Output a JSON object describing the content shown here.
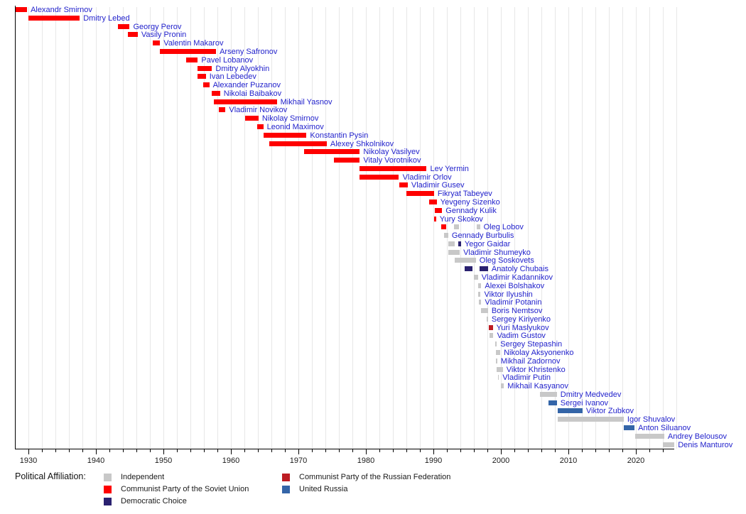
{
  "chart_data": {
    "type": "bar",
    "variant": "horizontal-timeline-gantt",
    "description": "Timeline of officeholders with bars colored by political affiliation",
    "x_axis": {
      "range": [
        1928,
        2025.7
      ],
      "decade_ticks": [
        1930,
        1940,
        1950,
        1960,
        1970,
        1980,
        1990,
        2000,
        2010,
        2020
      ],
      "minor_tick_step": 2,
      "gridline_step": 2,
      "grid": true
    },
    "legend_title": "Political Affiliation:",
    "legend_position": "bottom",
    "parties": {
      "independent": {
        "label": "Independent",
        "color": "#c8c8c8"
      },
      "cpsu": {
        "label": "Communist Party of the Soviet Union",
        "color": "#fe0000"
      },
      "democratic_choice": {
        "label": "Democratic Choice",
        "color": "#2a2170"
      },
      "cprf": {
        "label": "Communist Party of the Russian Federation",
        "color": "#bd1c23"
      },
      "united_russia": {
        "label": "United Russia",
        "color": "#3465a8"
      }
    },
    "legend_columns": [
      [
        "independent",
        "cpsu",
        "democratic_choice"
      ],
      [
        "cprf",
        "united_russia"
      ]
    ],
    "people": [
      {
        "name": "Alexandr Smirnov",
        "segments": [
          {
            "party": "cpsu",
            "start": 1928.0,
            "end": 1929.8
          }
        ]
      },
      {
        "name": "Dmitry Lebed",
        "segments": [
          {
            "party": "cpsu",
            "start": 1930.0,
            "end": 1937.6
          }
        ]
      },
      {
        "name": "Georgy Perov",
        "segments": [
          {
            "party": "cpsu",
            "start": 1943.3,
            "end": 1945.0
          }
        ]
      },
      {
        "name": "Vasily Pronin",
        "segments": [
          {
            "party": "cpsu",
            "start": 1944.7,
            "end": 1946.2
          }
        ]
      },
      {
        "name": "Valentin Makarov",
        "segments": [
          {
            "party": "cpsu",
            "start": 1948.4,
            "end": 1949.5
          }
        ]
      },
      {
        "name": "Arseny Safronov",
        "segments": [
          {
            "party": "cpsu",
            "start": 1949.5,
            "end": 1957.8
          }
        ]
      },
      {
        "name": "Pavel Lobanov",
        "segments": [
          {
            "party": "cpsu",
            "start": 1953.4,
            "end": 1955.1
          }
        ]
      },
      {
        "name": "Dmitry Alyokhin",
        "segments": [
          {
            "party": "cpsu",
            "start": 1955.1,
            "end": 1957.2
          }
        ]
      },
      {
        "name": "Ivan Lebedev",
        "segments": [
          {
            "party": "cpsu",
            "start": 1955.1,
            "end": 1956.3
          }
        ]
      },
      {
        "name": "Alexander Puzanov",
        "segments": [
          {
            "party": "cpsu",
            "start": 1955.9,
            "end": 1956.8
          }
        ]
      },
      {
        "name": "Nikolai Baibakov",
        "segments": [
          {
            "party": "cpsu",
            "start": 1957.2,
            "end": 1958.4
          }
        ]
      },
      {
        "name": "Mikhail Yasnov",
        "segments": [
          {
            "party": "cpsu",
            "start": 1957.5,
            "end": 1966.8
          }
        ]
      },
      {
        "name": "Vladimir Novikov",
        "segments": [
          {
            "party": "cpsu",
            "start": 1958.2,
            "end": 1959.2
          }
        ]
      },
      {
        "name": "Nikolay Smirnov",
        "segments": [
          {
            "party": "cpsu",
            "start": 1962.1,
            "end": 1964.1
          }
        ]
      },
      {
        "name": "Leonid Maximov",
        "segments": [
          {
            "party": "cpsu",
            "start": 1963.9,
            "end": 1964.8
          }
        ]
      },
      {
        "name": "Konstantin Pysin",
        "segments": [
          {
            "party": "cpsu",
            "start": 1964.8,
            "end": 1971.2
          }
        ]
      },
      {
        "name": "Alexey Shkolnikov",
        "segments": [
          {
            "party": "cpsu",
            "start": 1965.7,
            "end": 1974.2
          }
        ]
      },
      {
        "name": "Nikolay Vasilyev",
        "segments": [
          {
            "party": "cpsu",
            "start": 1970.8,
            "end": 1979.1
          }
        ]
      },
      {
        "name": "Vitaly Vorotnikov",
        "segments": [
          {
            "party": "cpsu",
            "start": 1975.3,
            "end": 1979.1
          }
        ]
      },
      {
        "name": "Lev Yermin",
        "segments": [
          {
            "party": "cpsu",
            "start": 1979.1,
            "end": 1989.0
          }
        ]
      },
      {
        "name": "Vladimir Orlov",
        "segments": [
          {
            "party": "cpsu",
            "start": 1979.1,
            "end": 1984.9
          }
        ]
      },
      {
        "name": "Vladimir Gusev",
        "segments": [
          {
            "party": "cpsu",
            "start": 1984.9,
            "end": 1986.2
          }
        ]
      },
      {
        "name": "Fikryat Tabeyev",
        "segments": [
          {
            "party": "cpsu",
            "start": 1986.0,
            "end": 1990.1
          }
        ]
      },
      {
        "name": "Yevgeny Sizenko",
        "segments": [
          {
            "party": "cpsu",
            "start": 1989.4,
            "end": 1990.5
          }
        ]
      },
      {
        "name": "Gennady Kulik",
        "segments": [
          {
            "party": "cpsu",
            "start": 1990.2,
            "end": 1991.3
          }
        ]
      },
      {
        "name": "Yury Skokov",
        "segments": [
          {
            "party": "cpsu",
            "start": 1990.1,
            "end": 1990.4
          }
        ]
      },
      {
        "name": "Oleg Lobov",
        "segments": [
          {
            "party": "cpsu",
            "start": 1991.2,
            "end": 1991.9
          },
          {
            "party": "independent",
            "start": 1993.1,
            "end": 1993.8
          },
          {
            "party": "independent",
            "start": 1996.4,
            "end": 1996.9
          }
        ]
      },
      {
        "name": "Gennady Burbulis",
        "segments": [
          {
            "party": "independent",
            "start": 1991.6,
            "end": 1992.2
          }
        ]
      },
      {
        "name": "Yegor Gaidar",
        "segments": [
          {
            "party": "independent",
            "start": 1992.2,
            "end": 1993.2
          },
          {
            "party": "democratic_choice",
            "start": 1993.7,
            "end": 1994.1
          }
        ]
      },
      {
        "name": "Vladimir Shumeyko",
        "segments": [
          {
            "party": "independent",
            "start": 1992.2,
            "end": 1993.9
          }
        ]
      },
      {
        "name": "Oleg Soskovets",
        "segments": [
          {
            "party": "independent",
            "start": 1993.2,
            "end": 1996.3
          }
        ]
      },
      {
        "name": "Anatoly Chubais",
        "segments": [
          {
            "party": "democratic_choice",
            "start": 1994.6,
            "end": 1995.8
          },
          {
            "party": "democratic_choice",
            "start": 1996.8,
            "end": 1998.1
          }
        ]
      },
      {
        "name": "Vladimir Kadannikov",
        "segments": [
          {
            "party": "independent",
            "start": 1996.0,
            "end": 1996.6
          }
        ]
      },
      {
        "name": "Alexei Bolshakov",
        "segments": [
          {
            "party": "independent",
            "start": 1996.6,
            "end": 1997.1
          }
        ]
      },
      {
        "name": "Viktor Ilyushin",
        "segments": [
          {
            "party": "independent",
            "start": 1996.6,
            "end": 1997.0
          }
        ]
      },
      {
        "name": "Vladimir Potanin",
        "segments": [
          {
            "party": "independent",
            "start": 1996.7,
            "end": 1997.1
          }
        ]
      },
      {
        "name": "Boris Nemtsov",
        "segments": [
          {
            "party": "independent",
            "start": 1997.1,
            "end": 1998.1
          }
        ]
      },
      {
        "name": "Sergey Kiriyenko",
        "segments": [
          {
            "party": "independent",
            "start": 1997.9,
            "end": 1998.1
          }
        ]
      },
      {
        "name": "Yuri Maslyukov",
        "segments": [
          {
            "party": "cprf",
            "start": 1998.2,
            "end": 1998.8
          }
        ]
      },
      {
        "name": "Vadim Gustov",
        "segments": [
          {
            "party": "independent",
            "start": 1998.3,
            "end": 1998.9
          }
        ]
      },
      {
        "name": "Sergey Stepashin",
        "segments": [
          {
            "party": "independent",
            "start": 1999.2,
            "end": 1999.4
          }
        ]
      },
      {
        "name": "Nikolay Aksyonenko",
        "segments": [
          {
            "party": "independent",
            "start": 1999.3,
            "end": 1999.9
          }
        ]
      },
      {
        "name": "Mikhail Zadornov",
        "segments": [
          {
            "party": "independent",
            "start": 1999.3,
            "end": 1999.45
          }
        ]
      },
      {
        "name": "Viktor Khristenko",
        "segments": [
          {
            "party": "independent",
            "start": 1999.4,
            "end": 2000.3
          }
        ]
      },
      {
        "name": "Vladimir Putin",
        "segments": [
          {
            "party": "independent",
            "start": 1999.55,
            "end": 1999.7
          }
        ]
      },
      {
        "name": "Mikhail Kasyanov",
        "segments": [
          {
            "party": "independent",
            "start": 2000.0,
            "end": 2000.45
          }
        ]
      },
      {
        "name": "Dmitry Medvedev",
        "segments": [
          {
            "party": "independent",
            "start": 2005.8,
            "end": 2008.3
          }
        ]
      },
      {
        "name": "Sergei Ivanov",
        "segments": [
          {
            "party": "united_russia",
            "start": 2007.0,
            "end": 2008.3
          }
        ]
      },
      {
        "name": "Viktor Zubkov",
        "segments": [
          {
            "party": "united_russia",
            "start": 2008.4,
            "end": 2012.1
          }
        ]
      },
      {
        "name": "Igor Shuvalov",
        "segments": [
          {
            "party": "independent",
            "start": 2008.4,
            "end": 2018.2
          }
        ]
      },
      {
        "name": "Anton Siluanov",
        "segments": [
          {
            "party": "united_russia",
            "start": 2018.2,
            "end": 2019.8
          }
        ]
      },
      {
        "name": "Andrey Belousov",
        "segments": [
          {
            "party": "independent",
            "start": 2019.9,
            "end": 2024.2
          }
        ]
      },
      {
        "name": "Denis Manturov",
        "segments": [
          {
            "party": "independent",
            "start": 2024.0,
            "end": 2025.7
          }
        ]
      }
    ]
  }
}
